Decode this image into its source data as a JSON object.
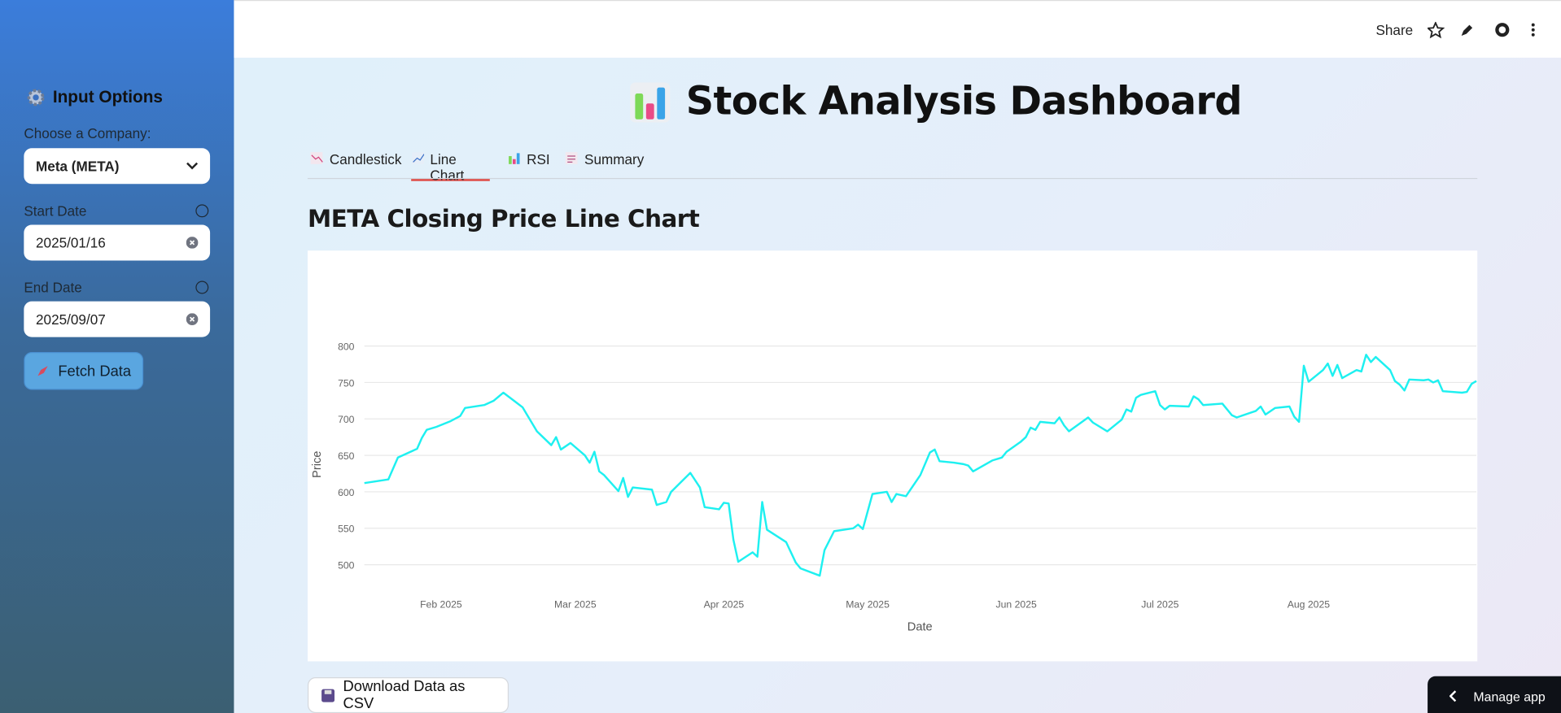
{
  "header": {
    "share": "Share"
  },
  "sidebar": {
    "title": "Input Options",
    "company_label": "Choose a Company:",
    "company": "Meta (META)",
    "start_label": "Start Date",
    "start_date": "2025/01/16",
    "end_label": "End Date",
    "end_date": "2025/09/07",
    "fetch_button": "Fetch Data"
  },
  "main": {
    "title": "Stock Analysis Dashboard",
    "tabs": [
      "Candlestick",
      "Line Chart",
      "RSI",
      "Summary"
    ],
    "download_button": "Download Data as CSV",
    "manage_app": "Manage app"
  },
  "chart_data": {
    "type": "line",
    "title": "META Closing Price Line Chart",
    "x_label": "Date",
    "y_label": "Price",
    "color": "#1ef0f0",
    "grid": true,
    "x": [
      "2025-01-16",
      "2025-01-21",
      "2025-01-23",
      "2025-01-27",
      "2025-01-28",
      "2025-01-29",
      "2025-01-31",
      "2025-02-03",
      "2025-02-05",
      "2025-02-06",
      "2025-02-10",
      "2025-02-12",
      "2025-02-14",
      "2025-02-18",
      "2025-02-20",
      "2025-02-21",
      "2025-02-24",
      "2025-02-25",
      "2025-02-26",
      "2025-02-28",
      "2025-03-03",
      "2025-03-04",
      "2025-03-05",
      "2025-03-06",
      "2025-03-07",
      "2025-03-10",
      "2025-03-11",
      "2025-03-12",
      "2025-03-13",
      "2025-03-17",
      "2025-03-18",
      "2025-03-20",
      "2025-03-21",
      "2025-03-25",
      "2025-03-27",
      "2025-03-28",
      "2025-03-31",
      "2025-04-01",
      "2025-04-02",
      "2025-04-03",
      "2025-04-04",
      "2025-04-07",
      "2025-04-08",
      "2025-04-09",
      "2025-04-10",
      "2025-04-14",
      "2025-04-16",
      "2025-04-17",
      "2025-04-21",
      "2025-04-22",
      "2025-04-24",
      "2025-04-28",
      "2025-04-29",
      "2025-04-30",
      "2025-05-02",
      "2025-05-05",
      "2025-05-06",
      "2025-05-07",
      "2025-05-09",
      "2025-05-12",
      "2025-05-14",
      "2025-05-15",
      "2025-05-16",
      "2025-05-19",
      "2025-05-21",
      "2025-05-22",
      "2025-05-23",
      "2025-05-27",
      "2025-05-29",
      "2025-05-30",
      "2025-06-02",
      "2025-06-03",
      "2025-06-04",
      "2025-06-05",
      "2025-06-06",
      "2025-06-09",
      "2025-06-10",
      "2025-06-11",
      "2025-06-12",
      "2025-06-16",
      "2025-06-17",
      "2025-06-20",
      "2025-06-23",
      "2025-06-24",
      "2025-06-25",
      "2025-06-26",
      "2025-06-27",
      "2025-06-30",
      "2025-07-01",
      "2025-07-02",
      "2025-07-03",
      "2025-07-07",
      "2025-07-08",
      "2025-07-09",
      "2025-07-10",
      "2025-07-14",
      "2025-07-16",
      "2025-07-17",
      "2025-07-21",
      "2025-07-22",
      "2025-07-23",
      "2025-07-25",
      "2025-07-28",
      "2025-07-29",
      "2025-07-30",
      "2025-07-31",
      "2025-08-01",
      "2025-08-04",
      "2025-08-05",
      "2025-08-06",
      "2025-08-07",
      "2025-08-08",
      "2025-08-11",
      "2025-08-12",
      "2025-08-13",
      "2025-08-14",
      "2025-08-15",
      "2025-08-18",
      "2025-08-19",
      "2025-08-20",
      "2025-08-21",
      "2025-08-22",
      "2025-08-25",
      "2025-08-26",
      "2025-08-27",
      "2025-08-28",
      "2025-08-29",
      "2025-09-02",
      "2025-09-03",
      "2025-09-04",
      "2025-09-05"
    ],
    "values": [
      612,
      617,
      647,
      659,
      674,
      685,
      689,
      697,
      704,
      715,
      719,
      725,
      736,
      716,
      694,
      683,
      664,
      675,
      658,
      667,
      650,
      640,
      655,
      628,
      623,
      601,
      619,
      593,
      606,
      603,
      582,
      586,
      600,
      626,
      606,
      579,
      576,
      585,
      584,
      534,
      504,
      517,
      511,
      586,
      548,
      531,
      503,
      495,
      485,
      520,
      546,
      550,
      555,
      549,
      597,
      600,
      586,
      597,
      594,
      623,
      654,
      658,
      642,
      640,
      638,
      636,
      628,
      643,
      647,
      655,
      669,
      675,
      688,
      685,
      696,
      694,
      702,
      691,
      683,
      702,
      695,
      683,
      699,
      713,
      710,
      729,
      733,
      738,
      719,
      713,
      718,
      717,
      731,
      727,
      719,
      721,
      705,
      702,
      711,
      717,
      706,
      715,
      717,
      703,
      696,
      773,
      751,
      767,
      776,
      759,
      774,
      756,
      767,
      765,
      788,
      778,
      785,
      767,
      752,
      747,
      739,
      754,
      753,
      754,
      750,
      753,
      738,
      736,
      737,
      748,
      752
    ],
    "xlim": [
      "2025-01-16",
      "2025-09-05"
    ],
    "xticks": [
      {
        "value": "2025-02-01",
        "label": "Feb 2025"
      },
      {
        "value": "2025-03-01",
        "label": "Mar 2025"
      },
      {
        "value": "2025-04-01",
        "label": "Apr 2025"
      },
      {
        "value": "2025-05-01",
        "label": "May 2025"
      },
      {
        "value": "2025-06-01",
        "label": "Jun 2025"
      },
      {
        "value": "2025-07-01",
        "label": "Jul 2025"
      },
      {
        "value": "2025-08-01",
        "label": "Aug 2025"
      }
    ],
    "ylim": [
      463,
      819
    ],
    "yticks": [
      500,
      550,
      600,
      650,
      700,
      750,
      800
    ]
  }
}
